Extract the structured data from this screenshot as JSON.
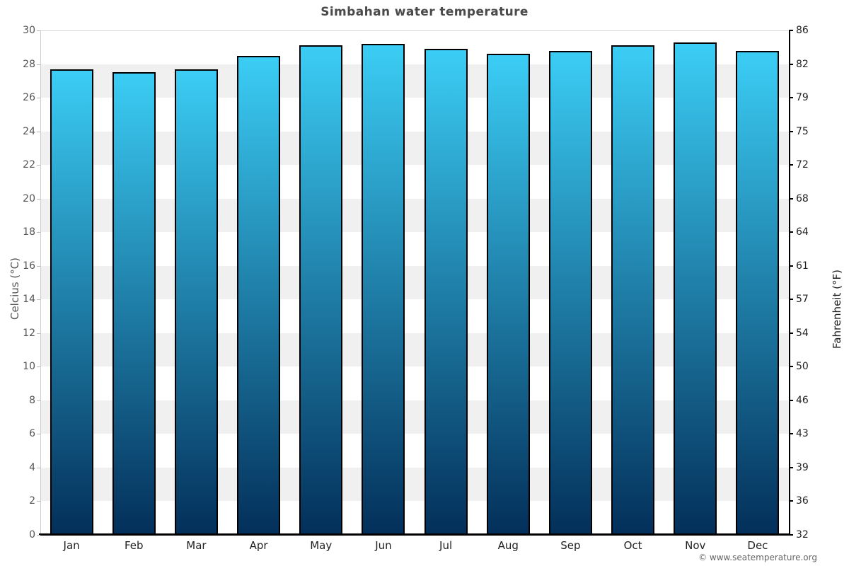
{
  "footer": "© www.seatemperature.org",
  "chart_data": {
    "type": "bar",
    "title": "Simbahan water temperature",
    "categories": [
      "Jan",
      "Feb",
      "Mar",
      "Apr",
      "May",
      "Jun",
      "Jul",
      "Aug",
      "Sep",
      "Oct",
      "Nov",
      "Dec"
    ],
    "values": [
      27.7,
      27.5,
      27.7,
      28.5,
      29.1,
      29.2,
      28.9,
      28.6,
      28.8,
      29.1,
      29.3,
      28.8
    ],
    "unit": "°C",
    "ylabel_left": "Celcius (°C)",
    "ylabel_right": "Fahrenheit (°F)",
    "ylim": [
      0,
      30
    ],
    "yticks_left": [
      30,
      28,
      26,
      24,
      22,
      20,
      18,
      16,
      14,
      12,
      10,
      8,
      6,
      4,
      2,
      0
    ],
    "yticks_right": [
      86,
      82,
      79,
      75,
      72,
      68,
      64,
      61,
      57,
      54,
      50,
      46,
      43,
      39,
      36,
      32
    ],
    "legend": false,
    "grid_bands": true,
    "colors": {
      "bar_gradient_top": "#3bcdf5",
      "bar_gradient_bottom": "#03305a",
      "bar_border": "#000000",
      "band_light": "#ffffff",
      "band_dark": "#f0f0f0",
      "axis_line_left": "#cccccc",
      "axis_line_right": "#000000",
      "baseline": "#000000",
      "title_color": "#4a4a4a",
      "tick_label_left": "#555555",
      "tick_label_right": "#222222",
      "month_label": "#222222",
      "footer_color": "#666666"
    }
  }
}
